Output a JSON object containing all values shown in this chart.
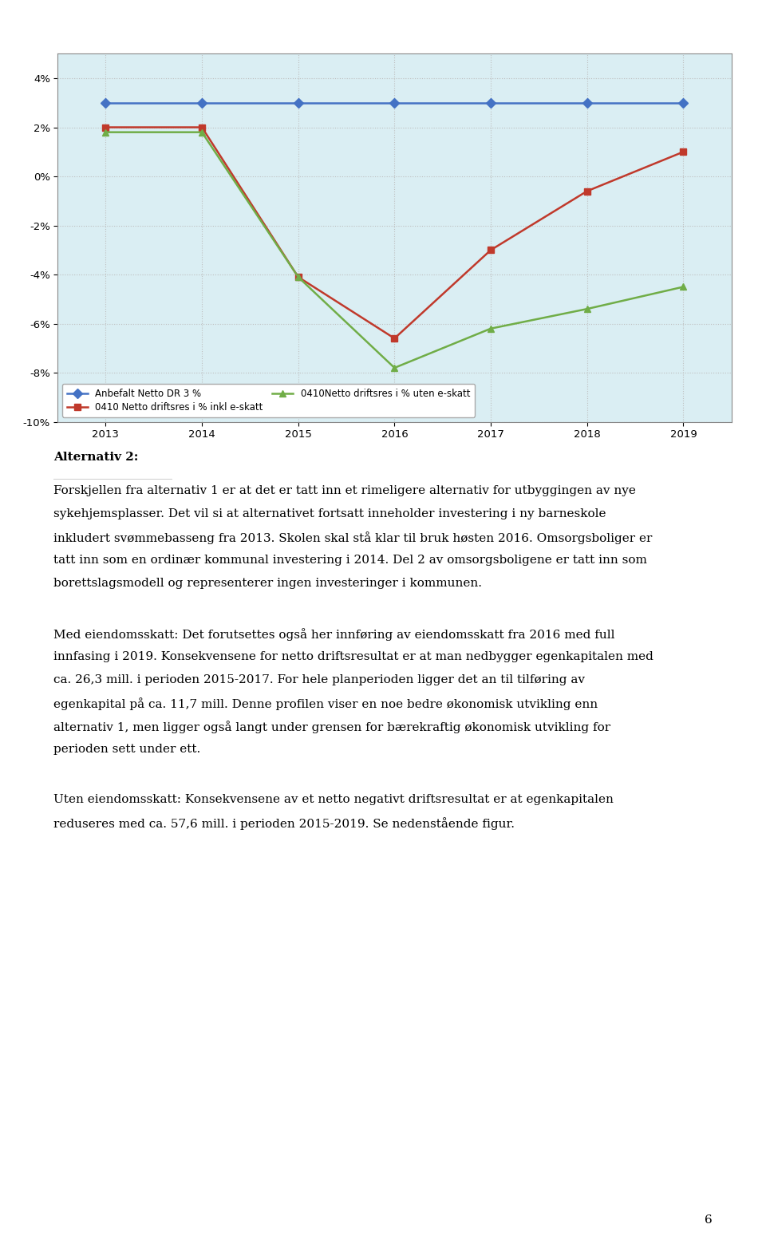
{
  "years": [
    2013,
    2014,
    2015,
    2016,
    2017,
    2018,
    2019
  ],
  "series_order": [
    "anbefalt",
    "inkl_eskatt",
    "uten_eskatt"
  ],
  "series": {
    "anbefalt": {
      "label": "Anbefalt Netto DR 3 %",
      "values": [
        3.0,
        3.0,
        3.0,
        3.0,
        3.0,
        3.0,
        3.0
      ],
      "color": "#4472C4",
      "marker": "D",
      "linestyle": "-"
    },
    "inkl_eskatt": {
      "label": "0410 Netto driftsres i % inkl e-skatt",
      "values": [
        2.0,
        2.0,
        -4.1,
        -6.6,
        -3.0,
        -0.6,
        1.0
      ],
      "color": "#C0392B",
      "marker": "s",
      "linestyle": "-"
    },
    "uten_eskatt": {
      "label": "0410Netto driftsres i % uten e-skatt",
      "values": [
        1.8,
        1.8,
        -4.1,
        -7.8,
        -6.2,
        -5.4,
        -4.5
      ],
      "color": "#70AD47",
      "marker": "^",
      "linestyle": "-"
    }
  },
  "ylim": [
    -10,
    5
  ],
  "yticks": [
    -10,
    -8,
    -6,
    -4,
    -2,
    0,
    2,
    4
  ],
  "ytick_labels": [
    "-10%",
    "-8%",
    "-6%",
    "-4%",
    "-2%",
    "0%",
    "2%",
    "4%"
  ],
  "background_color": "#FFFFFF",
  "grid_color": "#BFBFBF",
  "chart_bg": "#DAEEF3",
  "title_alt": "Alternativ 2:",
  "para1_line1": "Forskjellen fra alternativ 1 er at det er tatt inn et rimeligere alternativ for utbyggingen av nye",
  "para1_line2": "sykehjemsplasser. Det vil si at alternativet fortsatt inneholder investering i ny barneskole",
  "para1_line3": "inkludert svømmebasseng fra 2013. Skolen skal stå klar til bruk høsten 2016. Omsorgsboliger er",
  "para1_line4": "tatt inn som en ordinær kommunal investering i 2014. Del 2 av omsorgsboligene er tatt inn som",
  "para1_line5": "borettslagsmodell og representerer ingen investeringer i kommunen.",
  "para2_line1": "Med eiendomsskatt: Det forutsettes også her innføring av eiendomsskatt fra 2016 med full",
  "para2_line2": "innfasing i 2019. Konsekvensene for netto driftsresultat er at man nedbygger egenkapitalen med",
  "para2_line3": "ca. 26,3 mill. i perioden 2015-2017. For hele planperioden ligger det an til tilføring av",
  "para2_line4": "egenkapital på ca. 11,7 mill. Denne profilen viser en noe bedre økonomisk utvikling enn",
  "para2_line5": "alternativ 1, men ligger også langt under grensen for bærekraftig økonomisk utvikling for",
  "para2_line6": "perioden sett under ett.",
  "para3_line1": "Uten eiendomsskatt: Konsekvensene av et netto negativt driftsresultat er at egenkapitalen",
  "para3_line2": "reduseres med ca. 57,6 mill. i perioden 2015-2019. Se nedenstående figur.",
  "page_number": "6",
  "figsize": [
    9.6,
    15.64
  ],
  "dpi": 100
}
